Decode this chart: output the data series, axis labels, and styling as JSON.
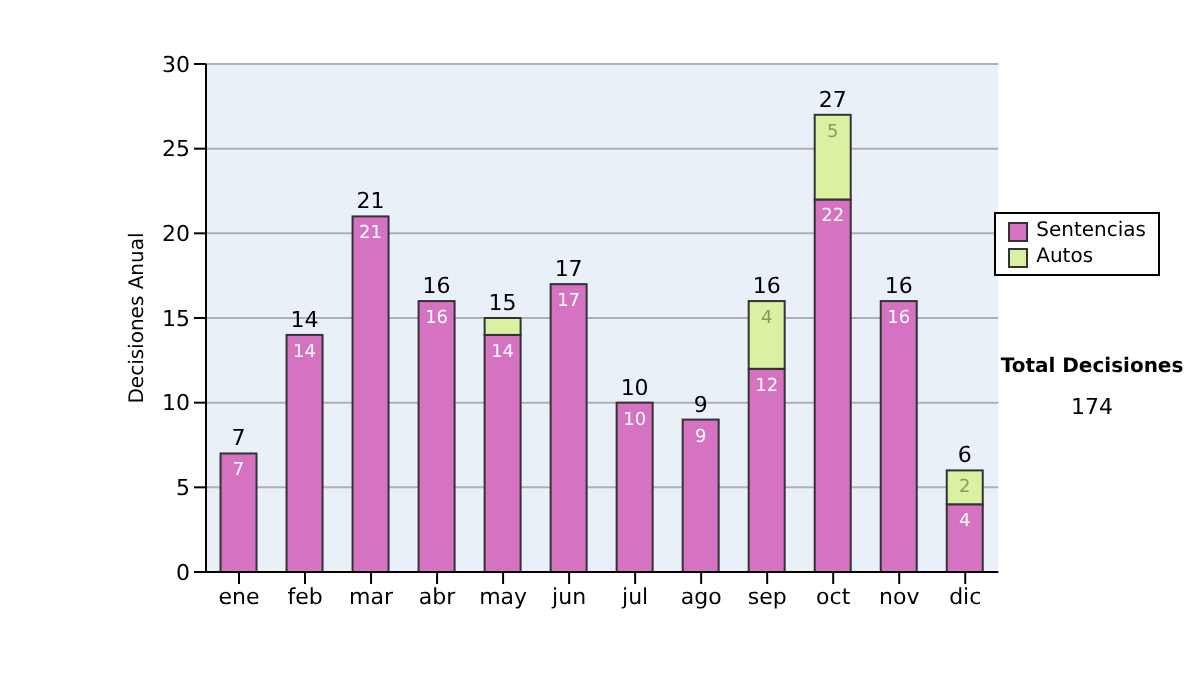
{
  "chart_data": {
    "type": "bar",
    "stacked": true,
    "ylabel": "Decisiones Anual",
    "categories": [
      "ene",
      "feb",
      "mar",
      "abr",
      "may",
      "jun",
      "jul",
      "ago",
      "sep",
      "oct",
      "nov",
      "dic"
    ],
    "series": [
      {
        "name": "Sentencias",
        "color": "#d672c2",
        "values": [
          7,
          14,
          21,
          16,
          14,
          17,
          10,
          9,
          12,
          22,
          16,
          4
        ],
        "value_labels": [
          "7",
          "14",
          "21",
          "16",
          "14",
          "17",
          "10",
          "9",
          "12",
          "22",
          "16",
          "4"
        ]
      },
      {
        "name": "Autos",
        "color": "#daf0a2",
        "values": [
          0,
          0,
          0,
          0,
          1,
          0,
          0,
          0,
          4,
          5,
          0,
          2
        ],
        "value_labels": [
          null,
          null,
          null,
          null,
          null,
          null,
          null,
          null,
          "4",
          "5",
          null,
          "2"
        ]
      }
    ],
    "totals": [
      "7",
      "14",
      "21",
      "16",
      "15",
      "17",
      "10",
      "9",
      "16",
      "27",
      "16",
      "6"
    ],
    "ylim": [
      0,
      30
    ],
    "yticks": [
      0,
      5,
      10,
      15,
      20,
      25,
      30
    ],
    "grid": "y",
    "legend": "right",
    "annotations": [
      "Total Decisiones",
      "174"
    ]
  }
}
